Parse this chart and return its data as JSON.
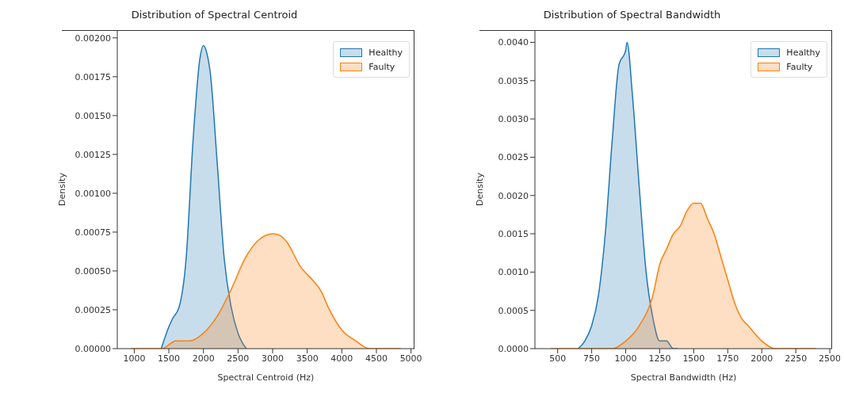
{
  "chart_data": [
    {
      "type": "area",
      "title": "Distribution of Spectral Centroid",
      "xlabel": "Spectral Centroid (Hz)",
      "ylabel": "Density",
      "xlim": [
        755,
        5050
      ],
      "ylim": [
        0,
        0.00205
      ],
      "xticks": [
        1000,
        1500,
        2000,
        2500,
        3000,
        3500,
        4000,
        4500,
        5000
      ],
      "yticks": [
        {
          "value": 0,
          "label": "0.00000"
        },
        {
          "value": 0.00025,
          "label": "0.00025"
        },
        {
          "value": 0.0005,
          "label": "0.00050"
        },
        {
          "value": 0.00075,
          "label": "0.00075"
        },
        {
          "value": 0.001,
          "label": "0.00100"
        },
        {
          "value": 0.00125,
          "label": "0.00125"
        },
        {
          "value": 0.0015,
          "label": "0.00150"
        },
        {
          "value": 0.00175,
          "label": "0.00175"
        },
        {
          "value": 0.002,
          "label": "0.00200"
        }
      ],
      "legend": "top right",
      "grid": false,
      "marker": "none",
      "line_style": "solid",
      "series": [
        {
          "name": "Healthy",
          "color": "#1f77b4",
          "x": [
            1390,
            1500,
            1550,
            1650,
            1750,
            1850,
            1950,
            2000,
            2050,
            2100,
            2200,
            2300,
            2400,
            2500,
            2620
          ],
          "values": [
            0,
            0.00014,
            0.00019,
            0.00027,
            0.00058,
            0.00134,
            0.00187,
            0.00195,
            0.0019,
            0.00177,
            0.00119,
            0.00058,
            0.00027,
            0.0001,
            0
          ]
        },
        {
          "name": "Faulty",
          "color": "#ff7f0e",
          "x": [
            950,
            1200,
            1400,
            1600,
            1800,
            2000,
            2200,
            2400,
            2600,
            2800,
            3000,
            3100,
            3200,
            3400,
            3600,
            3700,
            3800,
            4000,
            4200,
            4400,
            4600,
            4850
          ],
          "values": [
            0,
            0,
            0,
            5e-05,
            5e-05,
            0.0001,
            0.00021,
            0.00038,
            0.00058,
            0.0007,
            0.00074,
            0.00073,
            0.00069,
            0.00053,
            0.00043,
            0.00037,
            0.00027,
            0.00012,
            5e-05,
            0,
            0,
            0
          ]
        }
      ]
    },
    {
      "type": "area",
      "title": "Distribution of Spectral Bandwidth",
      "xlabel": "Spectral Bandwidth (Hz)",
      "ylabel": "Density",
      "xlim": [
        333,
        2517
      ],
      "ylim": [
        0,
        0.00416
      ],
      "xticks": [
        500,
        750,
        1000,
        1250,
        1500,
        1750,
        2000,
        2250,
        2500
      ],
      "yticks": [
        {
          "value": 0,
          "label": "0.0000"
        },
        {
          "value": 0.0005,
          "label": "0.0005"
        },
        {
          "value": 0.001,
          "label": "0.0010"
        },
        {
          "value": 0.0015,
          "label": "0.0015"
        },
        {
          "value": 0.002,
          "label": "0.0020"
        },
        {
          "value": 0.0025,
          "label": "0.0025"
        },
        {
          "value": 0.003,
          "label": "0.0030"
        },
        {
          "value": 0.0035,
          "label": "0.0035"
        },
        {
          "value": 0.004,
          "label": "0.0040"
        }
      ],
      "legend": "top right",
      "grid": false,
      "marker": "none",
      "line_style": "solid",
      "series": [
        {
          "name": "Healthy",
          "color": "#1f77b4",
          "x": [
            650,
            700,
            750,
            800,
            850,
            900,
            950,
            1000,
            1010,
            1050,
            1100,
            1150,
            1200,
            1250,
            1300,
            1350,
            1380
          ],
          "values": [
            0,
            0.0001,
            0.0003,
            0.0007,
            0.0015,
            0.0027,
            0.0037,
            0.0039,
            0.004,
            0.0033,
            0.0021,
            0.001,
            0.0004,
            0.0001,
            0.0001,
            0,
            0
          ]
        },
        {
          "name": "Faulty",
          "color": "#ff7f0e",
          "x": [
            450,
            600,
            800,
            900,
            1000,
            1100,
            1200,
            1250,
            1300,
            1350,
            1400,
            1450,
            1500,
            1550,
            1600,
            1650,
            1700,
            1750,
            1800,
            1850,
            1900,
            2000,
            2100,
            2200,
            2400
          ],
          "values": [
            0,
            0,
            0,
            0,
            0.0001,
            0.0003,
            0.0007,
            0.0011,
            0.0013,
            0.0015,
            0.0016,
            0.0018,
            0.0019,
            0.0019,
            0.0017,
            0.0015,
            0.0012,
            0.0009,
            0.0006,
            0.0004,
            0.0003,
            0.0001,
            0,
            0,
            0
          ]
        }
      ]
    }
  ]
}
